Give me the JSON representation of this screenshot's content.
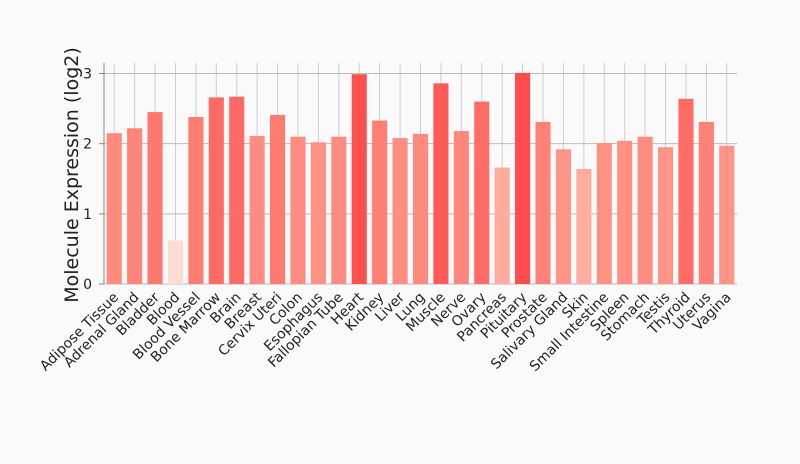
{
  "chart_data": {
    "type": "bar",
    "y_label": "Molecule Expression (log2)",
    "categories": [
      "Adipose Tissue",
      "Adrenal Gland",
      "Bladder",
      "Blood",
      "Blood Vessel",
      "Bone Marrow",
      "Brain",
      "Breast",
      "Cervix Uteri",
      "Colon",
      "Esophagus",
      "Fallopian Tube",
      "Heart",
      "Kidney",
      "Liver",
      "Lung",
      "Muscle",
      "Nerve",
      "Ovary",
      "Pancreas",
      "Pituitary",
      "Prostate",
      "Salivary Gland",
      "Skin",
      "Small Intestine",
      "Spleen",
      "Stomach",
      "Testis",
      "Thyroid",
      "Uterus",
      "Vagina"
    ],
    "values": [
      2.15,
      2.22,
      2.45,
      0.62,
      2.38,
      2.66,
      2.67,
      2.11,
      2.41,
      2.1,
      2.02,
      2.1,
      2.99,
      2.33,
      2.08,
      2.14,
      2.86,
      2.18,
      2.6,
      1.66,
      3.01,
      2.31,
      1.92,
      1.64,
      2.01,
      2.04,
      2.1,
      1.95,
      2.64,
      2.31,
      1.97
    ],
    "colors": [
      "#ff8a7e",
      "#ff857a",
      "#ff7870",
      "#ffddd2",
      "#ff7c73",
      "#ff6a64",
      "#ff6a64",
      "#ff8c80",
      "#ff7a71",
      "#ff8c80",
      "#ff9285",
      "#ff8c80",
      "#ff5050",
      "#ff7f75",
      "#ff8e82",
      "#ff8a7e",
      "#ff5a58",
      "#ff877c",
      "#ff6d66",
      "#ffab9e",
      "#ff4d4d",
      "#ff8177",
      "#ff9487",
      "#ffaca0",
      "#ff9285",
      "#ff9083",
      "#ff8c80",
      "#ff9487",
      "#ff6b65",
      "#ff8177",
      "#ff9386"
    ],
    "ylim": [
      0,
      3.15
    ],
    "yticks": [
      0,
      1,
      2,
      3
    ],
    "grid": true
  }
}
